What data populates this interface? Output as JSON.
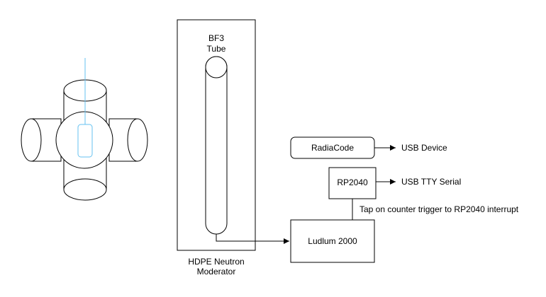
{
  "diagram": {
    "moderator": {
      "label_line1": "HDPE Neutron",
      "label_line2": "Moderator"
    },
    "tube": {
      "label_line1": "BF3",
      "label_line2": "Tube"
    },
    "radiacode": {
      "label": "RadiaCode",
      "output_label": "USB Device"
    },
    "rp2040": {
      "label": "RP2040",
      "output_label": "USB TTY Serial"
    },
    "ludlum": {
      "label": "Ludlum 2000"
    },
    "tap": {
      "label": "Tap on counter trigger to RP2040 interrupt"
    }
  },
  "colors": {
    "stroke": "#000000",
    "fill": "#ffffff",
    "accent": "#66c2f0"
  }
}
